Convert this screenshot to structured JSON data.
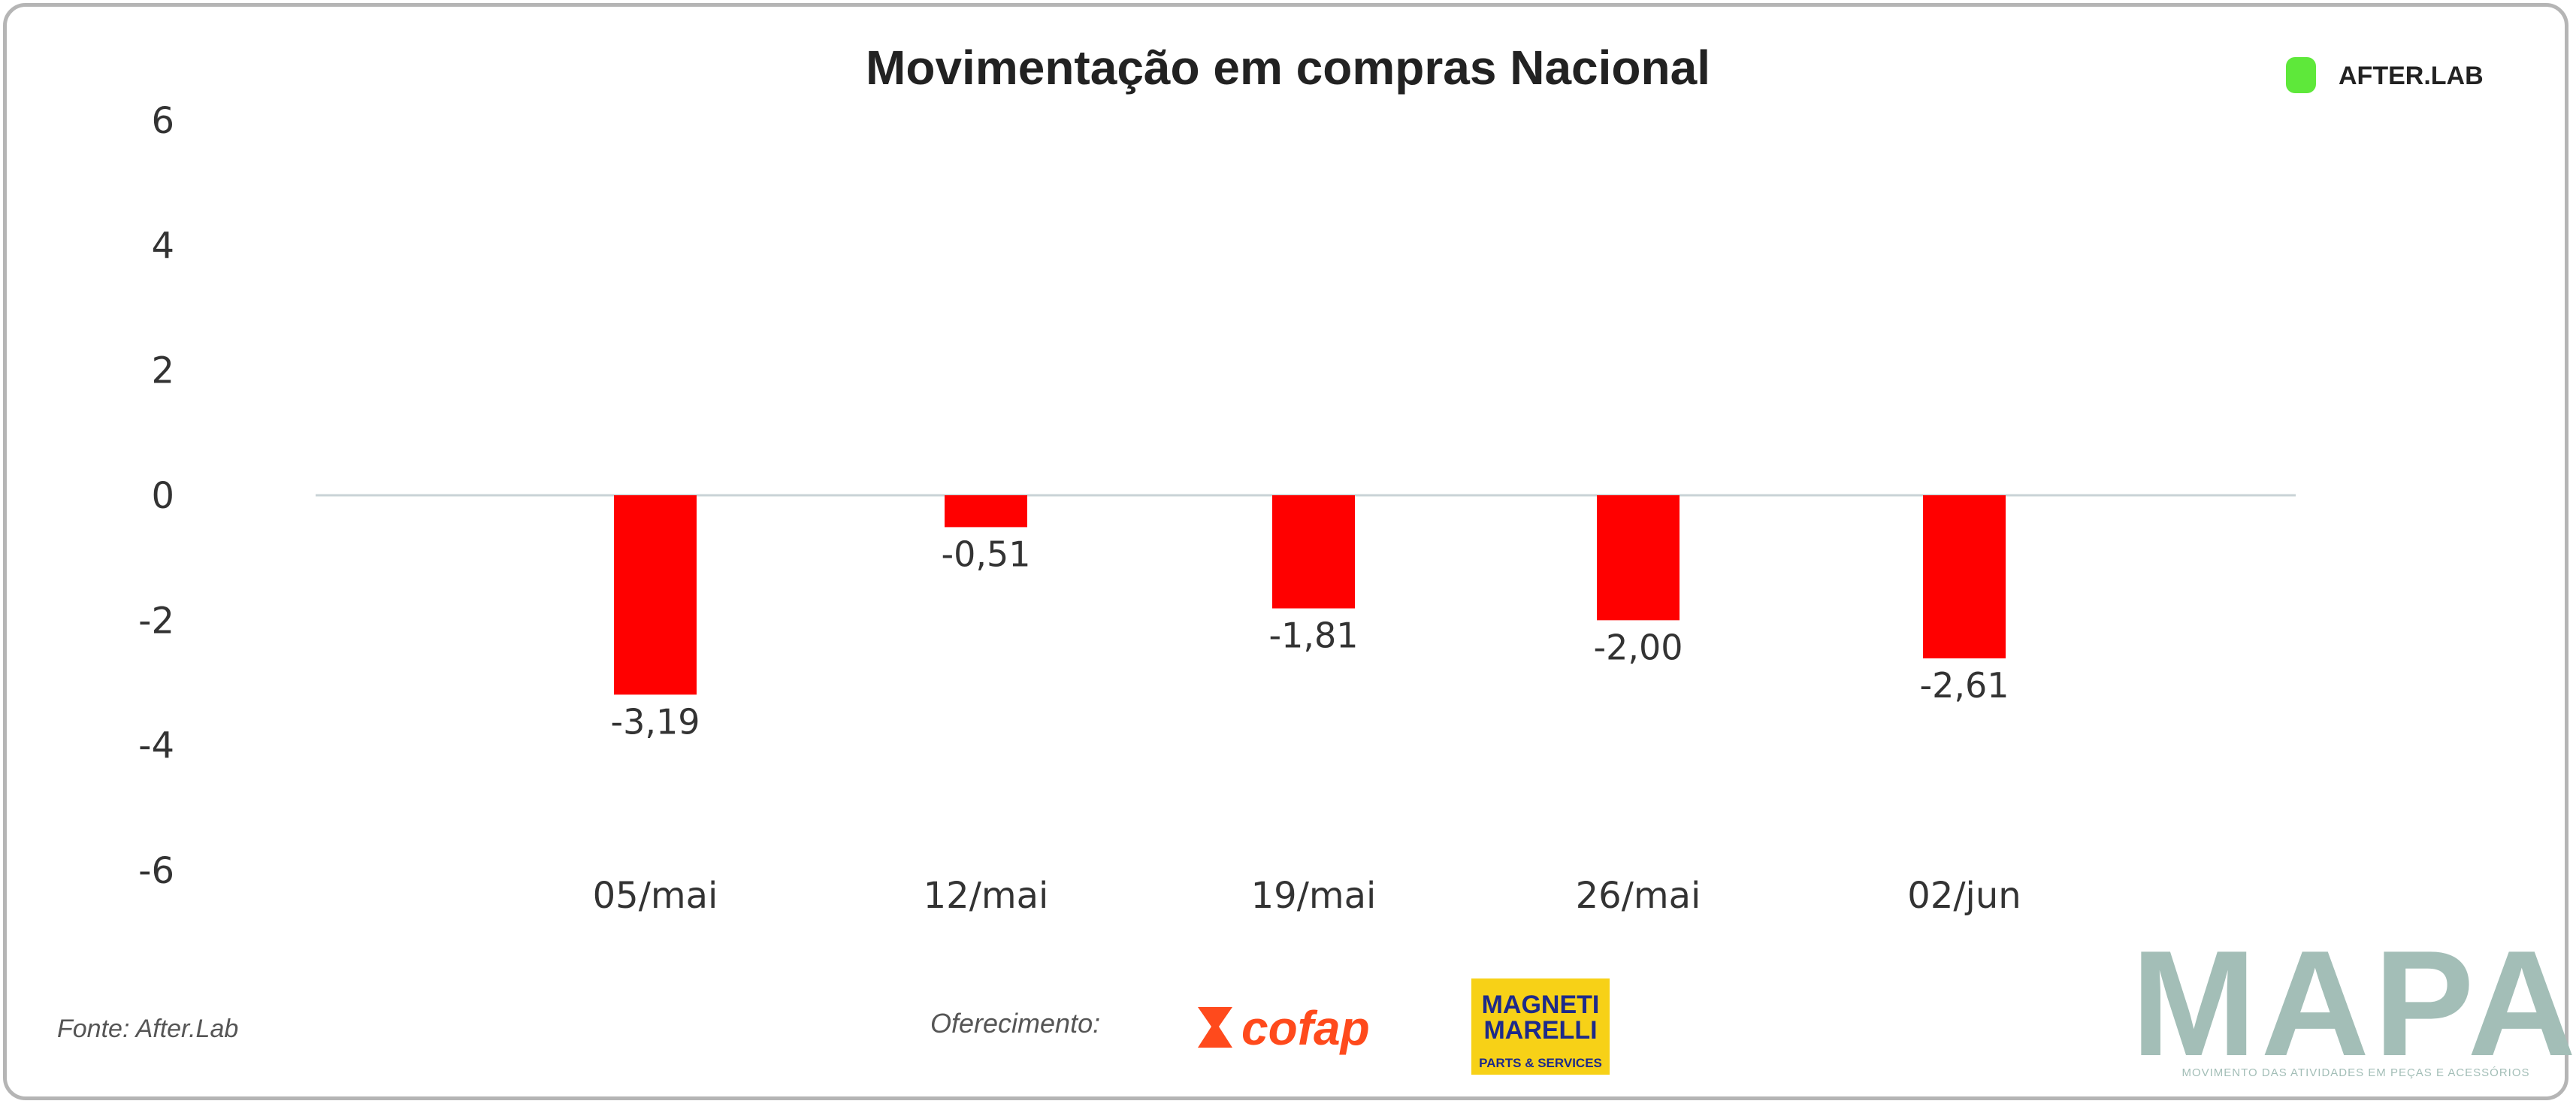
{
  "chart_data": {
    "type": "bar",
    "title": "Movimentação em compras Nacional",
    "categories": [
      "05/mai",
      "12/mai",
      "19/mai",
      "26/mai",
      "02/jun"
    ],
    "values": [
      -3.19,
      -0.51,
      -1.81,
      -2.0,
      -2.61
    ],
    "value_labels": [
      "-3,19",
      "-0,51",
      "-1,81",
      "-2,00",
      "-2,61"
    ],
    "ylim": [
      -6,
      6
    ],
    "yticks": [
      6,
      4,
      2,
      0,
      -2,
      -4,
      -6
    ],
    "ytick_labels": [
      "6",
      "4",
      "2",
      "0",
      "-2",
      "-4",
      "-6"
    ],
    "bar_color": "#ff0000",
    "grid": false,
    "legend": "none"
  },
  "footer": {
    "source": "Fonte: After.Lab",
    "sponsor_label": "Oferecimento:"
  },
  "logos": {
    "afterlab": "AFTER.LAB",
    "afterlab_color": "#5ee83a",
    "cofap": "cofap",
    "magneti_line1": "MAGNETI",
    "magneti_line2": "MARELLI",
    "magneti_sub": "PARTS & SERVICES",
    "magneti_bg": "#f7d117",
    "mapa": "MAPA",
    "mapa_tagline": "MOVIMENTO DAS ATIVIDADES EM PEÇAS E ACESSÓRIOS"
  }
}
